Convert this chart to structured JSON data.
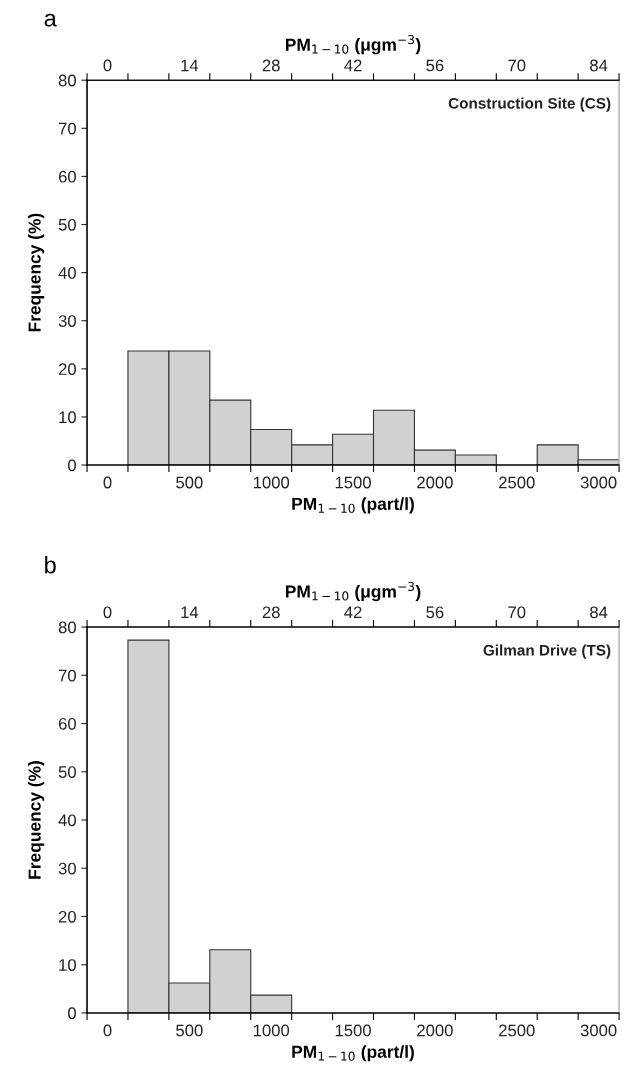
{
  "chart_data": [
    {
      "type": "histogram",
      "bins": [
        -125,
        125,
        375,
        625,
        875,
        1125,
        1375,
        1625,
        1875,
        2125,
        2375,
        2625,
        2875,
        3125
      ],
      "values": [
        0,
        23.7,
        23.7,
        13.5,
        7.4,
        4.2,
        6.4,
        11.4,
        3.1,
        2.1,
        0,
        4.2,
        1.1
      ],
      "color": "#d0d1d3",
      "xlabel": "PM$_{1−10}$ (part/l)",
      "x2label": "PM$_{1−10}$ (μgm$^{−3}$)",
      "ylabel": "Frequency (%)",
      "annotations": [
        "a",
        "Construction Site (CS)"
      ],
      "xlim": [
        -125,
        3125
      ],
      "xticks": [
        {
          "value": -125,
          "label": null
        },
        0,
        {
          "value": 125,
          "label": null
        },
        {
          "value": 375,
          "label": null
        },
        500,
        {
          "value": 625,
          "label": null
        },
        {
          "value": 875,
          "label": null
        },
        1000,
        {
          "value": 1125,
          "label": null
        },
        {
          "value": 1375,
          "label": null
        },
        1500,
        {
          "value": 1625,
          "label": null
        },
        {
          "value": 1875,
          "label": null
        },
        2000,
        {
          "value": 2125,
          "label": null
        },
        {
          "value": 2375,
          "label": null
        },
        2500,
        {
          "value": 2625,
          "label": null
        },
        {
          "value": 2875,
          "label": null
        },
        3000,
        {
          "value": 3125,
          "label": null
        }
      ],
      "x2lim": [
        -3.5,
        87.5
      ],
      "x2ticks": [
        {
          "value": -3.5,
          "label": null
        },
        0,
        {
          "value": 3.5,
          "label": null
        },
        {
          "value": 10.5,
          "label": null
        },
        14,
        {
          "value": 17.5,
          "label": null
        },
        {
          "value": 24.5,
          "label": null
        },
        28,
        {
          "value": 31.5,
          "label": null
        },
        {
          "value": 38.5,
          "label": null
        },
        42,
        {
          "value": 45.5,
          "label": null
        },
        {
          "value": 52.5,
          "label": null
        },
        56,
        {
          "value": 59.5,
          "label": null
        },
        {
          "value": 66.5,
          "label": null
        },
        70,
        {
          "value": 73.5,
          "label": null
        },
        {
          "value": 80.5,
          "label": null
        },
        84,
        {
          "value": 87.5,
          "label": null
        }
      ],
      "ylim": [
        0,
        80
      ],
      "yticks": [
        0,
        10,
        20,
        30,
        40,
        50,
        60,
        70,
        80
      ],
      "grid": false,
      "legend": false
    },
    {
      "type": "histogram",
      "bins": [
        -125,
        125,
        375,
        625,
        875,
        1125,
        1375,
        1625,
        1875,
        2125,
        2375,
        2625,
        2875,
        3125
      ],
      "values": [
        0,
        77.3,
        6.2,
        13.1,
        3.7,
        0,
        0,
        0,
        0,
        0,
        0,
        0,
        0
      ],
      "color": "#d0d1d3",
      "xlabel": "PM$_{1−10}$ (part/l)",
      "x2label": "PM$_{1−10}$ (μgm$^{−3}$)",
      "ylabel": "Frequency (%)",
      "annotations": [
        "b",
        "Gilman Drive (TS)"
      ],
      "xlim": [
        -125,
        3125
      ],
      "xticks": [
        {
          "value": -125,
          "label": null
        },
        0,
        {
          "value": 125,
          "label": null
        },
        {
          "value": 375,
          "label": null
        },
        500,
        {
          "value": 625,
          "label": null
        },
        {
          "value": 875,
          "label": null
        },
        1000,
        {
          "value": 1125,
          "label": null
        },
        {
          "value": 1375,
          "label": null
        },
        1500,
        {
          "value": 1625,
          "label": null
        },
        {
          "value": 1875,
          "label": null
        },
        2000,
        {
          "value": 2125,
          "label": null
        },
        {
          "value": 2375,
          "label": null
        },
        2500,
        {
          "value": 2625,
          "label": null
        },
        {
          "value": 2875,
          "label": null
        },
        3000,
        {
          "value": 3125,
          "label": null
        }
      ],
      "x2lim": [
        -3.5,
        87.5
      ],
      "x2ticks": [
        {
          "value": -3.5,
          "label": null
        },
        0,
        {
          "value": 3.5,
          "label": null
        },
        {
          "value": 10.5,
          "label": null
        },
        14,
        {
          "value": 17.5,
          "label": null
        },
        {
          "value": 24.5,
          "label": null
        },
        28,
        {
          "value": 31.5,
          "label": null
        },
        {
          "value": 38.5,
          "label": null
        },
        42,
        {
          "value": 45.5,
          "label": null
        },
        {
          "value": 52.5,
          "label": null
        },
        56,
        {
          "value": 59.5,
          "label": null
        },
        {
          "value": 66.5,
          "label": null
        },
        70,
        {
          "value": 73.5,
          "label": null
        },
        {
          "value": 80.5,
          "label": null
        },
        84,
        {
          "value": 87.5,
          "label": null
        }
      ],
      "ylim": [
        0,
        80
      ],
      "yticks": [
        0,
        10,
        20,
        30,
        40,
        50,
        60,
        70,
        80
      ],
      "grid": false,
      "legend": false
    }
  ]
}
